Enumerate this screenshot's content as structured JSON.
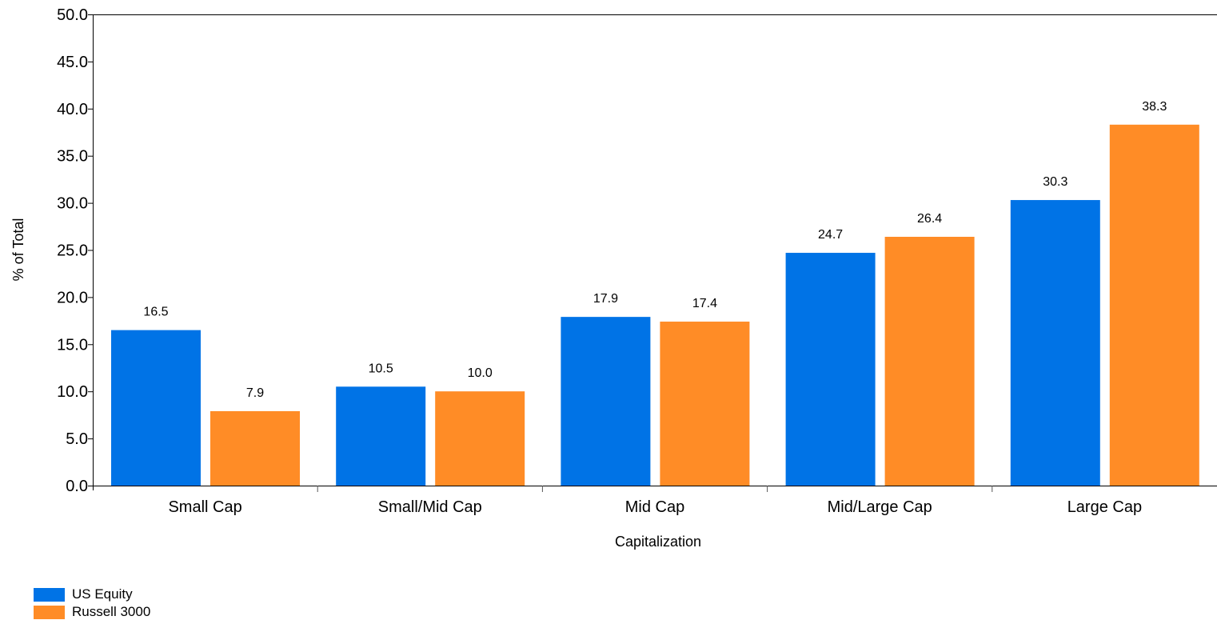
{
  "chart_data": {
    "type": "bar",
    "categories": [
      "Small Cap",
      "Small/Mid Cap",
      "Mid Cap",
      "Mid/Large Cap",
      "Large Cap"
    ],
    "series": [
      {
        "name": "US Equity",
        "values": [
          16.5,
          10.5,
          17.9,
          24.7,
          30.3
        ],
        "color": "#0073E6"
      },
      {
        "name": "Russell 3000",
        "values": [
          7.9,
          10.0,
          17.4,
          26.4,
          38.3
        ],
        "color": "#FF8C26"
      }
    ],
    "title": "",
    "xlabel": "Capitalization",
    "ylabel": "% of Total",
    "ylim": [
      0,
      50
    ],
    "yticks": [
      "0.0",
      "5.0",
      "10.0",
      "15.0",
      "20.0",
      "25.0",
      "30.0",
      "35.0",
      "40.0",
      "45.0",
      "50.0"
    ],
    "grid": false,
    "legend_position": "bottom-left",
    "data_labels": true
  }
}
